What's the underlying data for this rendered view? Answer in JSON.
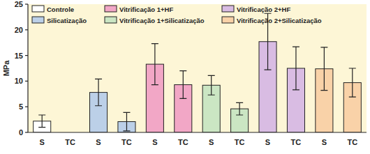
{
  "chart_data": {
    "type": "bar",
    "y_label": "MPa",
    "categories": [
      "S",
      "TC",
      "S",
      "TC",
      "S",
      "TC",
      "S",
      "TC",
      "S",
      "TC",
      "S",
      "TC"
    ],
    "series": [
      {
        "name": "Controle",
        "color": "#ffffff",
        "values": [
          2.2,
          0,
          null,
          null,
          null,
          null,
          null,
          null,
          null,
          null,
          null,
          null
        ],
        "errors": [
          1.2,
          null,
          null,
          null,
          null,
          null,
          null,
          null,
          null,
          null,
          null,
          null
        ]
      },
      {
        "name": "Silicatização",
        "color": "#bcd0e8",
        "values": [
          null,
          null,
          7.8,
          2.1,
          null,
          null,
          null,
          null,
          null,
          null,
          null,
          null
        ],
        "errors": [
          null,
          null,
          2.6,
          1.8,
          null,
          null,
          null,
          null,
          null,
          null,
          null,
          null
        ]
      },
      {
        "name": "Vitrificação 1+HF",
        "color": "#f2a7c6",
        "values": [
          null,
          null,
          null,
          null,
          13.3,
          9.3,
          null,
          null,
          null,
          null,
          null,
          null
        ],
        "errors": [
          null,
          null,
          null,
          null,
          4.0,
          2.7,
          null,
          null,
          null,
          null,
          null,
          null
        ]
      },
      {
        "name": "Vitrificação 1+Silicatização",
        "color": "#cbe6c3",
        "values": [
          null,
          null,
          null,
          null,
          null,
          null,
          9.2,
          4.6,
          null,
          null,
          null,
          null
        ],
        "errors": [
          null,
          null,
          null,
          null,
          null,
          null,
          1.9,
          1.2,
          null,
          null,
          null,
          null
        ]
      },
      {
        "name": "Vitrificação 2+HF",
        "color": "#d9bce3",
        "values": [
          null,
          null,
          null,
          null,
          null,
          null,
          null,
          null,
          17.7,
          12.5,
          null,
          null
        ],
        "errors": [
          null,
          null,
          null,
          null,
          null,
          null,
          null,
          null,
          5.5,
          4.2,
          null,
          null
        ]
      },
      {
        "name": "Vitrificação 2+Silicatização",
        "color": "#f9d2a8",
        "values": [
          null,
          null,
          null,
          null,
          null,
          null,
          null,
          null,
          null,
          null,
          12.4,
          9.7
        ],
        "errors": [
          null,
          null,
          null,
          null,
          null,
          null,
          null,
          null,
          null,
          null,
          4.2,
          2.8
        ]
      }
    ],
    "ylim": [
      0,
      25
    ],
    "yticks": [
      0,
      5,
      10,
      15,
      20,
      25
    ],
    "grid": false,
    "legend": "top"
  }
}
